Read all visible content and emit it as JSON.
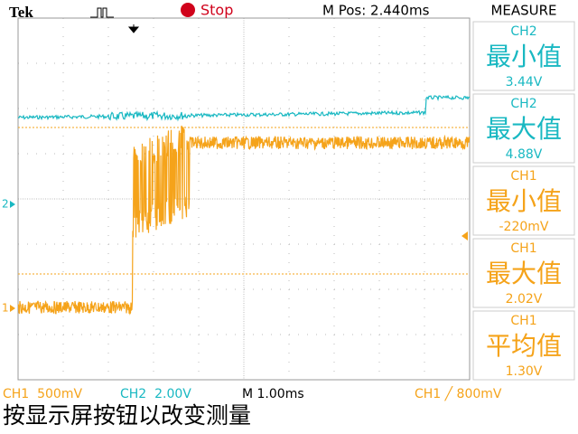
{
  "header": {
    "brand": "Tek",
    "status": "Stop",
    "m_pos": "M Pos: 2.440ms",
    "menu": "MEASURE"
  },
  "measurements": [
    {
      "channel": "CH2",
      "label": "最小值",
      "value": "3.44V",
      "color": "#19b8c2"
    },
    {
      "channel": "CH2",
      "label": "最大值",
      "value": "4.88V",
      "color": "#19b8c2"
    },
    {
      "channel": "CH1",
      "label": "最小值",
      "value": "-220mV",
      "color": "#f5a31a"
    },
    {
      "channel": "CH1",
      "label": "最大值",
      "value": "2.02V",
      "color": "#f5a31a"
    },
    {
      "channel": "CH1",
      "label": "平均值",
      "value": "1.30V",
      "color": "#f5a31a"
    }
  ],
  "markers": {
    "ch2": "2",
    "ch1": "1"
  },
  "footer": {
    "ch1_scale": "CH1  500mV",
    "ch2_scale": "CH2  2.00V",
    "timebase": "M 1.00ms",
    "trigger": "CH1 ╱ 800mV",
    "message": "按显示屏按钮以改变测量"
  }
}
